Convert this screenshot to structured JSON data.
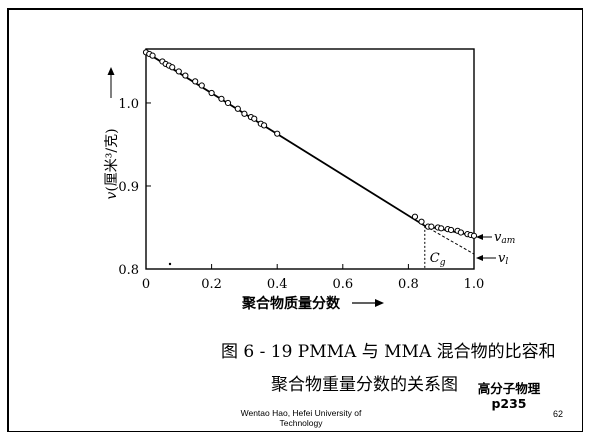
{
  "slide": {
    "caption_line1": "图 6 - 19   PMMA 与 MMA 混合物的比容和",
    "caption_line2": "聚合物重量分数的关系图",
    "course_title": "高分子物理",
    "course_page": "p235",
    "author_line1": "Wentao Hao, Hefei University of",
    "author_line2": "Technology",
    "page_number": "62"
  },
  "chart_data": {
    "type": "line",
    "xlabel": "聚合物质量分数",
    "ylabel": "(厘米³/克)",
    "ylabel_symbol": "v",
    "xlim": [
      0,
      1.0
    ],
    "ylim": [
      0.8,
      1.065
    ],
    "xticks": [
      0,
      0.2,
      0.4,
      0.6,
      0.8,
      1.0
    ],
    "xtick_labels": [
      "0",
      "0.2",
      "0.4",
      "0.6",
      "0.8",
      "1.0"
    ],
    "yticks": [
      0.8,
      0.9,
      1.0
    ],
    "ytick_labels": [
      "0.8",
      "0.9",
      "1.0"
    ],
    "grid": false,
    "series": [
      {
        "name": "v_am",
        "style": "solid",
        "x": [
          0,
          0.85,
          1.0
        ],
        "values": [
          1.061,
          0.852,
          0.84
        ]
      },
      {
        "name": "v_l",
        "style": "dashed",
        "x": [
          0.85,
          1.0
        ],
        "values": [
          0.852,
          0.818
        ]
      }
    ],
    "points": {
      "x": [
        0.0,
        0.01,
        0.02,
        0.05,
        0.06,
        0.07,
        0.08,
        0.1,
        0.12,
        0.15,
        0.17,
        0.2,
        0.23,
        0.25,
        0.28,
        0.3,
        0.32,
        0.33,
        0.35,
        0.36,
        0.4,
        0.82,
        0.84,
        0.86,
        0.87,
        0.89,
        0.9,
        0.92,
        0.93,
        0.95,
        0.96,
        0.98,
        0.99,
        1.0
      ],
      "y": [
        1.061,
        1.059,
        1.057,
        1.05,
        1.047,
        1.045,
        1.043,
        1.038,
        1.033,
        1.026,
        1.021,
        1.012,
        1.005,
        1.0,
        0.993,
        0.987,
        0.983,
        0.981,
        0.975,
        0.973,
        0.963,
        0.863,
        0.857,
        0.851,
        0.851,
        0.85,
        0.849,
        0.848,
        0.847,
        0.846,
        0.844,
        0.842,
        0.841,
        0.84
      ]
    },
    "glass_transition": {
      "x": 0.85,
      "label": "C",
      "label_subscript": "g"
    },
    "annotations": [
      {
        "symbol": "v",
        "subscript": "am"
      },
      {
        "symbol": "v",
        "subscript": "l"
      }
    ]
  },
  "icons": {
    "arrow": "right-arrow-icon"
  }
}
